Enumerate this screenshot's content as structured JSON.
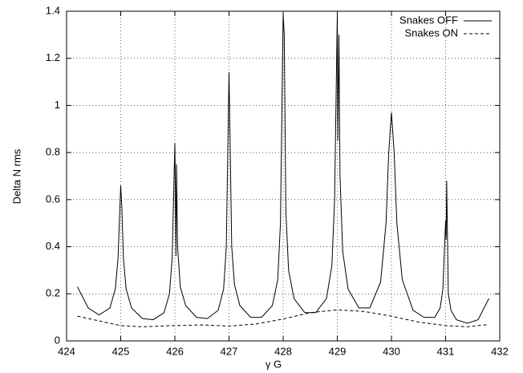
{
  "chart_data": {
    "type": "line",
    "xlabel": "γ G",
    "ylabel": "Delta N rms",
    "xlim": [
      424,
      432
    ],
    "ylim": [
      0,
      1.4
    ],
    "xticks": [
      424,
      425,
      426,
      427,
      428,
      429,
      430,
      431,
      432
    ],
    "yticks": [
      0,
      0.2,
      0.4,
      0.6,
      0.8,
      1,
      1.2,
      1.4
    ],
    "grid": true,
    "legend": "top-right",
    "series": [
      {
        "name": "Snakes OFF",
        "color": "#000000",
        "dash": "solid",
        "x": [
          424.2,
          424.4,
          424.6,
          424.8,
          424.9,
          424.95,
          425,
          425.02,
          425.05,
          425.1,
          425.2,
          425.4,
          425.6,
          425.8,
          425.9,
          425.95,
          426,
          426.02,
          426.03,
          426.05,
          426.1,
          426.2,
          426.4,
          426.6,
          426.8,
          426.9,
          426.95,
          427,
          427.05,
          427.1,
          427.2,
          427.4,
          427.6,
          427.8,
          427.9,
          427.95,
          428,
          428.02,
          428.05,
          428.1,
          428.2,
          428.4,
          428.6,
          428.8,
          428.9,
          428.95,
          429,
          429.01,
          429.03,
          429.05,
          429.1,
          429.2,
          429.4,
          429.6,
          429.8,
          429.9,
          429.95,
          430,
          430.05,
          430.1,
          430.2,
          430.4,
          430.6,
          430.8,
          430.9,
          430.95,
          431,
          431.01,
          431.02,
          431.05,
          431.1,
          431.2,
          431.4,
          431.6,
          431.8
        ],
        "values": [
          0.23,
          0.14,
          0.11,
          0.14,
          0.22,
          0.35,
          0.66,
          0.57,
          0.35,
          0.22,
          0.14,
          0.095,
          0.09,
          0.12,
          0.2,
          0.35,
          0.84,
          0.36,
          0.75,
          0.4,
          0.23,
          0.15,
          0.1,
          0.095,
          0.13,
          0.22,
          0.4,
          1.14,
          0.4,
          0.24,
          0.15,
          0.1,
          0.1,
          0.15,
          0.26,
          0.5,
          1.39,
          1.3,
          0.55,
          0.3,
          0.18,
          0.12,
          0.12,
          0.18,
          0.32,
          0.6,
          1.39,
          0.85,
          1.3,
          0.7,
          0.38,
          0.22,
          0.14,
          0.14,
          0.25,
          0.5,
          0.8,
          0.97,
          0.8,
          0.5,
          0.26,
          0.13,
          0.1,
          0.1,
          0.14,
          0.22,
          0.51,
          0.43,
          0.68,
          0.2,
          0.13,
          0.09,
          0.075,
          0.09,
          0.18
        ]
      },
      {
        "name": "Snakes ON",
        "color": "#000000",
        "dash": "dashed",
        "x": [
          424.2,
          424.6,
          425,
          425.4,
          426,
          426.5,
          427,
          427.5,
          428,
          428.5,
          429,
          429.5,
          430,
          430.5,
          431,
          431.4,
          431.8
        ],
        "values": [
          0.105,
          0.085,
          0.065,
          0.06,
          0.065,
          0.068,
          0.063,
          0.072,
          0.093,
          0.12,
          0.132,
          0.125,
          0.105,
          0.08,
          0.065,
          0.06,
          0.07
        ]
      }
    ]
  }
}
